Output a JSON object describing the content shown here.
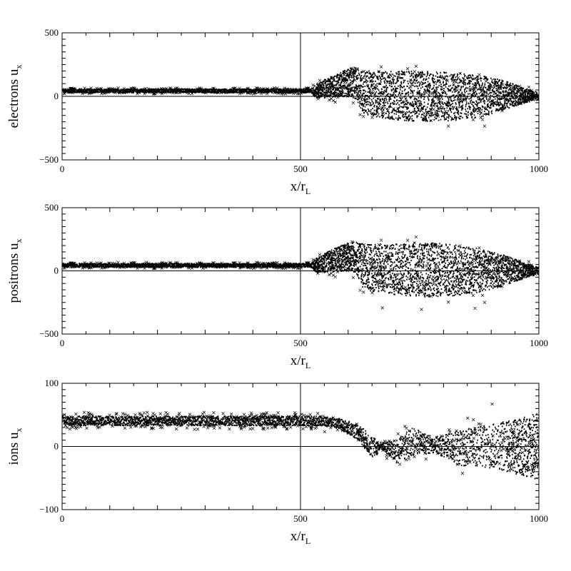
{
  "chart_data": [
    {
      "type": "scatter",
      "species": "electrons",
      "ylabel_main": "electrons u",
      "ylabel_sub": "x",
      "xlabel_main": "x/r",
      "xlabel_sub": "L",
      "xlim": [
        0,
        1000
      ],
      "ylim": [
        -500,
        500
      ],
      "xticks": [
        "0",
        "500",
        "1000"
      ],
      "yticks": [
        "500",
        "0",
        "−500"
      ],
      "ytick_values": [
        500,
        0,
        -500
      ],
      "reference_lines": {
        "x": 500,
        "y": 0
      },
      "profile": [
        {
          "x": 0,
          "lo": 28,
          "hi": 58
        },
        {
          "x": 520,
          "lo": 28,
          "hi": 58
        },
        {
          "x": 530,
          "lo": -15,
          "hi": 95
        },
        {
          "x": 560,
          "lo": -10,
          "hi": 150
        },
        {
          "x": 600,
          "lo": 0,
          "hi": 220
        },
        {
          "x": 615,
          "lo": -20,
          "hi": 230
        },
        {
          "x": 630,
          "lo": -140,
          "hi": 200
        },
        {
          "x": 680,
          "lo": -180,
          "hi": 200
        },
        {
          "x": 750,
          "lo": -200,
          "hi": 200
        },
        {
          "x": 820,
          "lo": -190,
          "hi": 190
        },
        {
          "x": 880,
          "lo": -160,
          "hi": 160
        },
        {
          "x": 930,
          "lo": -100,
          "hi": 120
        },
        {
          "x": 970,
          "lo": -50,
          "hi": 60
        },
        {
          "x": 1000,
          "lo": -25,
          "hi": 30
        }
      ],
      "outlier_extent": 260
    },
    {
      "type": "scatter",
      "species": "positrons",
      "ylabel_main": "positrons u",
      "ylabel_sub": "x",
      "xlabel_main": "x/r",
      "xlabel_sub": "L",
      "xlim": [
        0,
        1000
      ],
      "ylim": [
        -500,
        500
      ],
      "xticks": [
        "0",
        "500",
        "1000"
      ],
      "yticks": [
        "500",
        "0",
        "−500"
      ],
      "ytick_values": [
        500,
        0,
        -500
      ],
      "reference_lines": {
        "x": 500,
        "y": 0
      },
      "profile": [
        {
          "x": 0,
          "lo": 28,
          "hi": 58
        },
        {
          "x": 520,
          "lo": 28,
          "hi": 58
        },
        {
          "x": 530,
          "lo": -15,
          "hi": 95
        },
        {
          "x": 560,
          "lo": -10,
          "hi": 160
        },
        {
          "x": 600,
          "lo": 0,
          "hi": 230
        },
        {
          "x": 615,
          "lo": -20,
          "hi": 240
        },
        {
          "x": 630,
          "lo": -150,
          "hi": 210
        },
        {
          "x": 680,
          "lo": -180,
          "hi": 210
        },
        {
          "x": 750,
          "lo": -210,
          "hi": 230
        },
        {
          "x": 820,
          "lo": -200,
          "hi": 210
        },
        {
          "x": 880,
          "lo": -170,
          "hi": 170
        },
        {
          "x": 930,
          "lo": -110,
          "hi": 120
        },
        {
          "x": 970,
          "lo": -55,
          "hi": 60
        },
        {
          "x": 1000,
          "lo": -25,
          "hi": 30
        }
      ],
      "outlier_extent": 330
    },
    {
      "type": "scatter",
      "species": "ions",
      "ylabel_main": "ions u",
      "ylabel_sub": "x",
      "xlabel_main": "x/r",
      "xlabel_sub": "L",
      "xlim": [
        0,
        1000
      ],
      "ylim": [
        -100,
        100
      ],
      "xticks": [
        "0",
        "500",
        "1000"
      ],
      "yticks": [
        "100",
        "0",
        "−100"
      ],
      "ytick_values": [
        100,
        0,
        -100
      ],
      "reference_lines": {
        "x": 500,
        "y": 0
      },
      "profile": [
        {
          "x": 0,
          "lo": 33,
          "hi": 48
        },
        {
          "x": 540,
          "lo": 33,
          "hi": 48
        },
        {
          "x": 580,
          "lo": 28,
          "hi": 44
        },
        {
          "x": 620,
          "lo": 10,
          "hi": 35
        },
        {
          "x": 650,
          "lo": -20,
          "hi": 15
        },
        {
          "x": 670,
          "lo": -5,
          "hi": 5
        },
        {
          "x": 700,
          "lo": -28,
          "hi": 10
        },
        {
          "x": 730,
          "lo": -15,
          "hi": 30
        },
        {
          "x": 780,
          "lo": -10,
          "hi": 15
        },
        {
          "x": 830,
          "lo": -30,
          "hi": 25
        },
        {
          "x": 900,
          "lo": -35,
          "hi": 35
        },
        {
          "x": 960,
          "lo": -45,
          "hi": 45
        },
        {
          "x": 1000,
          "lo": -55,
          "hi": 55
        }
      ],
      "outlier_extent": 90
    }
  ]
}
